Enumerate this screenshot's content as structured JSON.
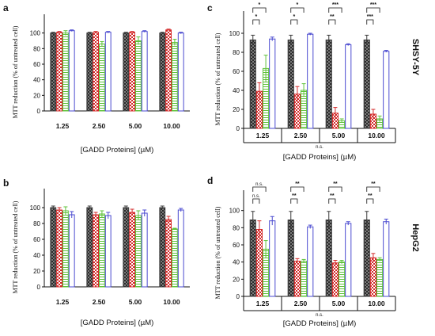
{
  "side_labels": {
    "top": "SHSY-5Y",
    "bottom": "HepG2"
  },
  "series_colors": [
    "#3a3a3a",
    "#d42b2b",
    "#5fc23a",
    "#4a4ad0"
  ],
  "chart_data": [
    {
      "panel": "a",
      "type": "bar",
      "categories": [
        "1.25",
        "2.50",
        "5.00",
        "10.00"
      ],
      "series": [
        {
          "values": [
            100,
            100,
            100,
            100
          ],
          "errors": [
            1,
            1,
            1,
            1
          ]
        },
        {
          "values": [
            101,
            101,
            101,
            104
          ],
          "errors": [
            1,
            1,
            1,
            1
          ]
        },
        {
          "values": [
            100,
            86,
            90,
            88
          ],
          "errors": [
            3,
            3,
            5,
            4
          ]
        },
        {
          "values": [
            103,
            101,
            102,
            100
          ],
          "errors": [
            1,
            1,
            1,
            1
          ]
        }
      ],
      "ylabel": "MTT reduction (% of untreated cell)",
      "xlabel": "[GADD Proteins] (µM)",
      "ylim": [
        0,
        120
      ],
      "yticks": [
        0,
        20,
        40,
        60,
        80,
        100
      ],
      "significance": [],
      "ns_label": "",
      "boxed_categories": false
    },
    {
      "panel": "b",
      "type": "bar",
      "categories": [
        "1.25",
        "2.50",
        "5.00",
        "10.00"
      ],
      "series": [
        {
          "values": [
            100,
            100,
            100,
            100
          ],
          "errors": [
            2,
            2,
            2,
            2
          ]
        },
        {
          "values": [
            97,
            91,
            94,
            85
          ],
          "errors": [
            3,
            3,
            4,
            4
          ]
        },
        {
          "values": [
            96,
            92,
            90,
            73
          ],
          "errors": [
            5,
            4,
            6,
            1
          ]
        },
        {
          "values": [
            91,
            90,
            93,
            97
          ],
          "errors": [
            4,
            4,
            4,
            2
          ]
        }
      ],
      "ylabel": "MTT reduction (% of untreated cell)",
      "xlabel": "[GADD Proteins] (µM)",
      "ylim": [
        0,
        120
      ],
      "yticks": [
        0,
        20,
        40,
        60,
        80,
        100
      ],
      "significance": [],
      "ns_label": "",
      "boxed_categories": false
    },
    {
      "panel": "c",
      "type": "bar",
      "categories": [
        "1.25",
        "2.50",
        "5.00",
        "10.00"
      ],
      "series": [
        {
          "values": [
            93,
            93,
            93,
            93
          ],
          "errors": [
            5,
            5,
            5,
            5
          ]
        },
        {
          "values": [
            39,
            36,
            16,
            15
          ],
          "errors": [
            9,
            8,
            6,
            5
          ]
        },
        {
          "values": [
            63,
            40,
            8,
            10
          ],
          "errors": [
            14,
            7,
            2,
            3
          ]
        },
        {
          "values": [
            94,
            99,
            88,
            81
          ],
          "errors": [
            2,
            1,
            1,
            1
          ]
        }
      ],
      "ylabel": "MTT reduction (% of untreated cell)",
      "xlabel": "[GADD Proteins] (µM)",
      "ylim": [
        0,
        120
      ],
      "yticks": [
        0,
        20,
        40,
        60,
        80,
        100
      ],
      "significance": [
        {
          "cat": 0,
          "to": 2,
          "label": "*"
        },
        {
          "cat": 0,
          "to": 1,
          "label": "*"
        },
        {
          "cat": 1,
          "to": 2,
          "label": "*"
        },
        {
          "cat": 1,
          "to": 1,
          "label": "*"
        },
        {
          "cat": 2,
          "to": 2,
          "label": "***"
        },
        {
          "cat": 2,
          "to": 1,
          "label": "**"
        },
        {
          "cat": 3,
          "to": 2,
          "label": "***"
        },
        {
          "cat": 3,
          "to": 1,
          "label": "***"
        }
      ],
      "ns_label": "n.s.",
      "boxed_categories": true
    },
    {
      "panel": "d",
      "type": "bar",
      "categories": [
        "1.25",
        "2.50",
        "5.00",
        "10.00"
      ],
      "series": [
        {
          "values": [
            89,
            89,
            89,
            89
          ],
          "errors": [
            10,
            10,
            10,
            10
          ]
        },
        {
          "values": [
            78,
            41,
            39,
            45
          ],
          "errors": [
            10,
            3,
            3,
            5
          ]
        },
        {
          "values": [
            55,
            41,
            40,
            43
          ],
          "errors": [
            10,
            2,
            2,
            2
          ]
        },
        {
          "values": [
            88,
            81,
            85,
            87
          ],
          "errors": [
            5,
            2,
            2,
            3
          ]
        }
      ],
      "ylabel": "MTT reduction (% of untreated cell)",
      "xlabel": "[GADD Proteins] (µM)",
      "ylim": [
        0,
        120
      ],
      "yticks": [
        0,
        20,
        40,
        60,
        80,
        100
      ],
      "significance": [
        {
          "cat": 0,
          "to": 2,
          "label": "n.s."
        },
        {
          "cat": 0,
          "to": 1,
          "label": "n.s."
        },
        {
          "cat": 1,
          "to": 2,
          "label": "**"
        },
        {
          "cat": 1,
          "to": 1,
          "label": "**"
        },
        {
          "cat": 2,
          "to": 2,
          "label": "**"
        },
        {
          "cat": 2,
          "to": 1,
          "label": "**"
        },
        {
          "cat": 3,
          "to": 2,
          "label": "**"
        },
        {
          "cat": 3,
          "to": 1,
          "label": "**"
        }
      ],
      "ns_label": "n.s.",
      "boxed_categories": true
    }
  ]
}
